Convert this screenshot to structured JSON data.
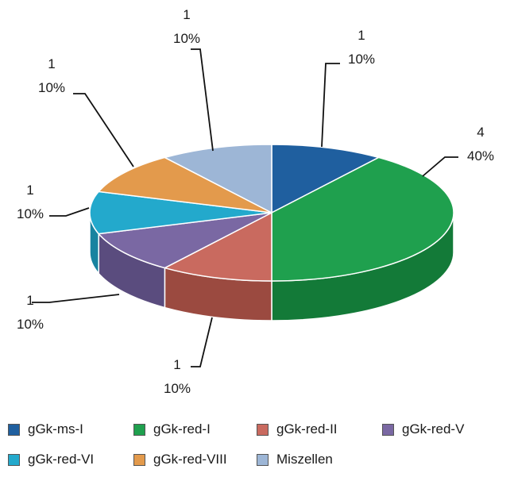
{
  "chart_data": {
    "type": "pie",
    "title": "",
    "style": "3d-exploded",
    "legend_position": "bottom",
    "categories": [
      "gGk-ms-I",
      "gGk-red-I",
      "gGk-red-II",
      "gGk-red-V",
      "gGk-red-VI",
      "gGk-red-VIII",
      "Miszellen"
    ],
    "values": [
      1,
      4,
      1,
      1,
      1,
      1,
      1
    ],
    "percent_labels": [
      "10%",
      "40%",
      "10%",
      "10%",
      "10%",
      "10%",
      "10%"
    ],
    "count_labels": [
      "1",
      "4",
      "1",
      "1",
      "1",
      "1",
      "1"
    ],
    "colors": [
      "#1f5f9f",
      "#1fa04e",
      "#c96a5f",
      "#7a68a3",
      "#23a9cc",
      "#e39a4c",
      "#9db6d6"
    ],
    "side_colors": [
      "#164a7c",
      "#137a38",
      "#9b4a40",
      "#5a4c7e",
      "#1883a0",
      "#b27230",
      "#788fae"
    ]
  }
}
